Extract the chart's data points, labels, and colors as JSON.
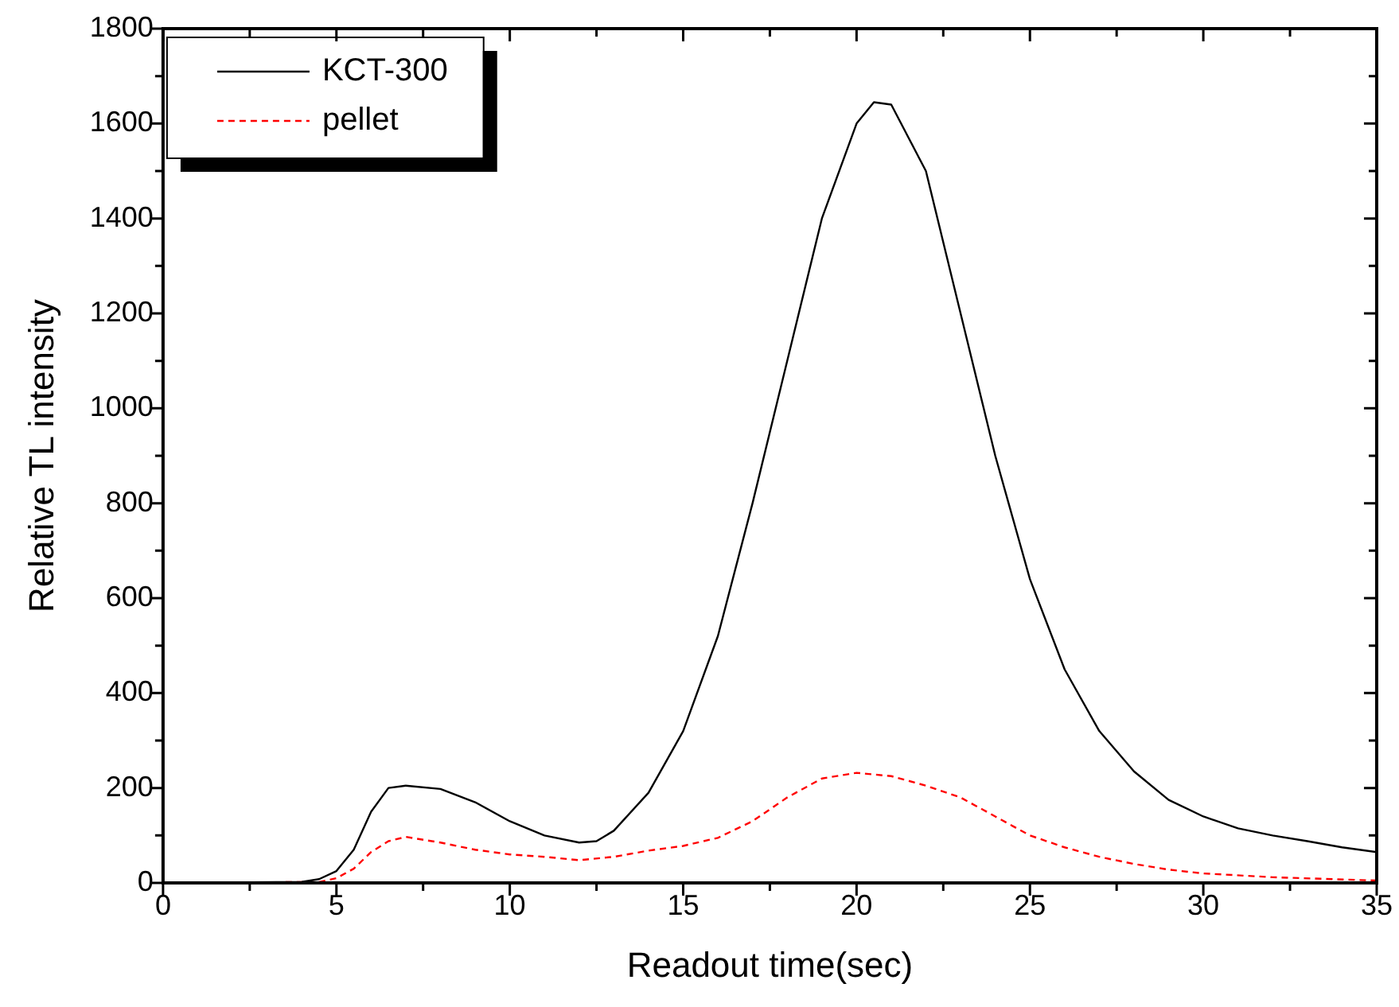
{
  "chart_data": {
    "type": "line",
    "xlabel": "Readout time(sec)",
    "ylabel": "Relative TL intensity",
    "xlim": [
      0,
      35
    ],
    "ylim": [
      0,
      1800
    ],
    "xticks": [
      0,
      {
        "value": 2.5,
        "label": null
      },
      5,
      {
        "value": 7.5,
        "label": null
      },
      10,
      {
        "value": 12.5,
        "label": null
      },
      15,
      {
        "value": 17.5,
        "label": null
      },
      20,
      {
        "value": 22.5,
        "label": null
      },
      25,
      {
        "value": 27.5,
        "label": null
      },
      30,
      {
        "value": 32.5,
        "label": null
      },
      35
    ],
    "yticks": [
      0,
      {
        "value": 100,
        "label": null
      },
      200,
      {
        "value": 300,
        "label": null
      },
      400,
      {
        "value": 500,
        "label": null
      },
      600,
      {
        "value": 700,
        "label": null
      },
      800,
      {
        "value": 900,
        "label": null
      },
      1000,
      {
        "value": 1100,
        "label": null
      },
      1200,
      {
        "value": 1300,
        "label": null
      },
      1400,
      {
        "value": 1500,
        "label": null
      },
      1600,
      {
        "value": 1700,
        "label": null
      },
      1800
    ],
    "legend": "top left",
    "grid": false,
    "marker": "none",
    "series": [
      {
        "name": "KCT-300",
        "color": "#000000",
        "line_style": "solid",
        "x": [
          0,
          4,
          4.5,
          5,
          5.5,
          6,
          6.5,
          7,
          8,
          9,
          10,
          11,
          12,
          12.5,
          13,
          14,
          15,
          16,
          17,
          18,
          19,
          20,
          20.5,
          21,
          22,
          23,
          24,
          25,
          26,
          27,
          28,
          29,
          30,
          31,
          32,
          33,
          34,
          35
        ],
        "values": [
          0,
          2,
          8,
          25,
          70,
          150,
          200,
          205,
          198,
          170,
          130,
          100,
          85,
          88,
          110,
          190,
          320,
          520,
          800,
          1100,
          1400,
          1600,
          1645,
          1640,
          1500,
          1200,
          900,
          640,
          450,
          320,
          235,
          175,
          140,
          115,
          100,
          88,
          75,
          65
        ]
      },
      {
        "name": "pellet",
        "color": "#ff0000",
        "line_style": "dashed",
        "x": [
          0,
          4.5,
          5,
          5.5,
          6,
          6.5,
          7,
          8,
          9,
          10,
          11,
          12,
          13,
          14,
          15,
          16,
          17,
          18,
          19,
          20,
          21,
          22,
          23,
          24,
          25,
          26,
          27,
          28,
          29,
          30,
          32,
          35
        ],
        "values": [
          0,
          2,
          10,
          30,
          65,
          88,
          97,
          85,
          70,
          60,
          55,
          48,
          55,
          68,
          78,
          95,
          130,
          180,
          220,
          232,
          225,
          205,
          180,
          140,
          100,
          75,
          55,
          40,
          28,
          20,
          12,
          5
        ]
      }
    ]
  }
}
